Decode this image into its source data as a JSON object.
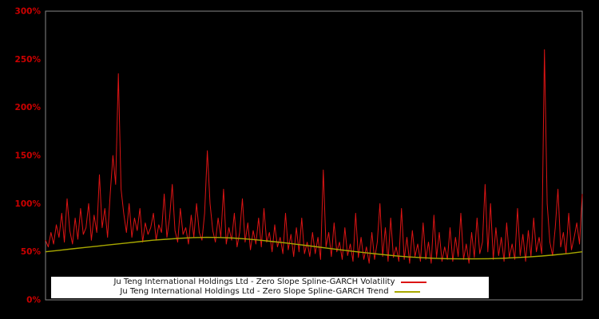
{
  "chart_data": {
    "type": "line",
    "title": "",
    "xlabel": "",
    "ylabel": "",
    "ylim": [
      0,
      300
    ],
    "y_ticks": [
      {
        "value": 0,
        "label": "0%"
      },
      {
        "value": 50,
        "label": "50%"
      },
      {
        "value": 100,
        "label": "100%"
      },
      {
        "value": 150,
        "label": "150%"
      },
      {
        "value": 200,
        "label": "200%"
      },
      {
        "value": 250,
        "label": "250%"
      },
      {
        "value": 300,
        "label": "300%"
      }
    ],
    "x_tick_labels": [],
    "grid": false,
    "background_color": "#000000",
    "frame_color": "#888888",
    "tick_label_color": "#cc0000",
    "legend_position": "bottom-center",
    "series": [
      {
        "name": "Ju Teng International Holdings Ltd - Zero Slope Spline-GARCH Volatility",
        "color": "#dc1414",
        "values": [
          62,
          55,
          70,
          58,
          78,
          65,
          90,
          60,
          105,
          72,
          58,
          85,
          63,
          95,
          68,
          75,
          100,
          62,
          88,
          70,
          130,
          75,
          95,
          65,
          110,
          150,
          120,
          235,
          115,
          90,
          70,
          100,
          65,
          85,
          72,
          95,
          60,
          80,
          68,
          75,
          90,
          62,
          78,
          70,
          110,
          65,
          85,
          120,
          72,
          60,
          95,
          68,
          75,
          58,
          88,
          65,
          100,
          70,
          62,
          90,
          155,
          100,
          72,
          60,
          85,
          65,
          115,
          58,
          75,
          62,
          90,
          55,
          70,
          105,
          60,
          80,
          52,
          72,
          58,
          85,
          55,
          95,
          60,
          70,
          50,
          78,
          55,
          65,
          48,
          90,
          52,
          68,
          45,
          75,
          50,
          85,
          48,
          60,
          45,
          70,
          48,
          65,
          42,
          135,
          55,
          70,
          45,
          80,
          50,
          60,
          42,
          75,
          46,
          58,
          40,
          90,
          44,
          65,
          42,
          55,
          38,
          70,
          42,
          60,
          100,
          45,
          75,
          40,
          85,
          44,
          55,
          40,
          95,
          42,
          65,
          38,
          72,
          45,
          58,
          40,
          80,
          42,
          60,
          38,
          88,
          44,
          70,
          40,
          55,
          42,
          75,
          40,
          65,
          45,
          90,
          42,
          58,
          38,
          70,
          44,
          85,
          48,
          60,
          120,
          50,
          100,
          42,
          75,
          46,
          65,
          40,
          80,
          44,
          58,
          42,
          95,
          46,
          68,
          40,
          72,
          45,
          85,
          50,
          65,
          48,
          260,
          100,
          60,
          46,
          75,
          115,
          55,
          70,
          48,
          90,
          52,
          65,
          80,
          58,
          110
        ]
      },
      {
        "name": "Ju Teng International Holdings Ltd - Zero Slope Spline-GARCH Trend",
        "color": "#a8a800",
        "values": [
          50,
          51.5,
          53,
          54.5,
          56,
          57.5,
          59,
          60.5,
          62,
          63,
          64,
          64.7,
          65,
          64.8,
          64.2,
          63.2,
          62,
          60.5,
          59,
          57.3,
          55.5,
          53.7,
          52,
          50.3,
          48.7,
          47.2,
          45.8,
          44.7,
          43.8,
          43.2,
          42.8,
          42.6,
          42.6,
          42.8,
          43.2,
          43.8,
          44.6,
          45.6,
          46.8,
          48.2,
          50
        ]
      }
    ]
  },
  "legend": {
    "items": [
      {
        "label": "Ju Teng International Holdings Ltd - Zero Slope Spline-GARCH Volatility",
        "color": "#dc1414"
      },
      {
        "label": "Ju Teng International Holdings Ltd - Zero Slope Spline-GARCH Trend",
        "color": "#a8a800"
      }
    ]
  }
}
